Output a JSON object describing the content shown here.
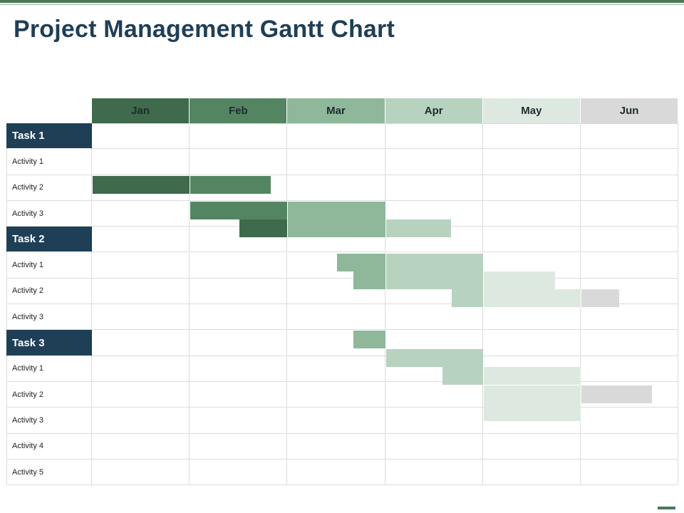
{
  "title": "Project Management Gantt Chart",
  "months": [
    "Jan",
    "Feb",
    "Mar",
    "Apr",
    "May",
    "Jun"
  ],
  "month_colors": [
    "#3f6a4b",
    "#548563",
    "#8fb89a",
    "#b7d2bf",
    "#dde9e0",
    "#d9d9d9"
  ],
  "rows": [
    {
      "label": "Task 1",
      "kind": "task"
    },
    {
      "label": "Activity 1",
      "kind": "activity"
    },
    {
      "label": "Activity 2",
      "kind": "activity"
    },
    {
      "label": "Activity 3",
      "kind": "activity"
    },
    {
      "label": "Task 2",
      "kind": "task"
    },
    {
      "label": "Activity 1",
      "kind": "activity"
    },
    {
      "label": "Activity 2",
      "kind": "activity"
    },
    {
      "label": "Activity 3",
      "kind": "activity"
    },
    {
      "label": "Task 3",
      "kind": "task"
    },
    {
      "label": "Activity 1",
      "kind": "activity"
    },
    {
      "label": "Activity 2",
      "kind": "activity"
    },
    {
      "label": "Activity 3",
      "kind": "activity"
    },
    {
      "label": "Activity 4",
      "kind": "activity"
    },
    {
      "label": "Activity 5",
      "kind": "activity"
    }
  ],
  "chart_data": {
    "type": "gantt",
    "x_unit": "month",
    "segments": [
      {
        "row": 2,
        "start": 0.0,
        "end": 1.0,
        "month": 0
      },
      {
        "row": 2,
        "start": 1.0,
        "end": 1.83,
        "month": 1
      },
      {
        "row": 3,
        "start": 1.0,
        "end": 2.0,
        "month": 1
      },
      {
        "row": 3,
        "start": 2.0,
        "end": 3.0,
        "month": 2
      },
      {
        "row": 3.7,
        "start": 1.5,
        "end": 2.0,
        "month": 0
      },
      {
        "row": 3.7,
        "start": 2.0,
        "end": 3.0,
        "month": 2
      },
      {
        "row": 3.7,
        "start": 3.0,
        "end": 3.67,
        "month": 3
      },
      {
        "row": 5,
        "start": 2.5,
        "end": 3.0,
        "month": 2
      },
      {
        "row": 5,
        "start": 3.0,
        "end": 4.0,
        "month": 3
      },
      {
        "row": 5.7,
        "start": 2.67,
        "end": 3.0,
        "month": 2
      },
      {
        "row": 5.7,
        "start": 3.0,
        "end": 4.0,
        "month": 3
      },
      {
        "row": 5.7,
        "start": 4.0,
        "end": 4.74,
        "month": 4
      },
      {
        "row": 6.4,
        "start": 3.67,
        "end": 4.0,
        "month": 3
      },
      {
        "row": 6.4,
        "start": 4.0,
        "end": 5.0,
        "month": 4
      },
      {
        "row": 6.4,
        "start": 5.0,
        "end": 5.39,
        "month": 5
      },
      {
        "row": 8,
        "start": 2.67,
        "end": 3.0,
        "month": 2
      },
      {
        "row": 8.7,
        "start": 3.0,
        "end": 4.0,
        "month": 3
      },
      {
        "row": 9.4,
        "start": 3.58,
        "end": 4.0,
        "month": 3
      },
      {
        "row": 9.4,
        "start": 4.0,
        "end": 5.0,
        "month": 4
      },
      {
        "row": 10.1,
        "start": 4.0,
        "end": 5.0,
        "month": 4
      },
      {
        "row": 10.1,
        "start": 5.0,
        "end": 5.73,
        "month": 5
      },
      {
        "row": 10.8,
        "start": 4.0,
        "end": 5.0,
        "month": 4
      }
    ]
  }
}
